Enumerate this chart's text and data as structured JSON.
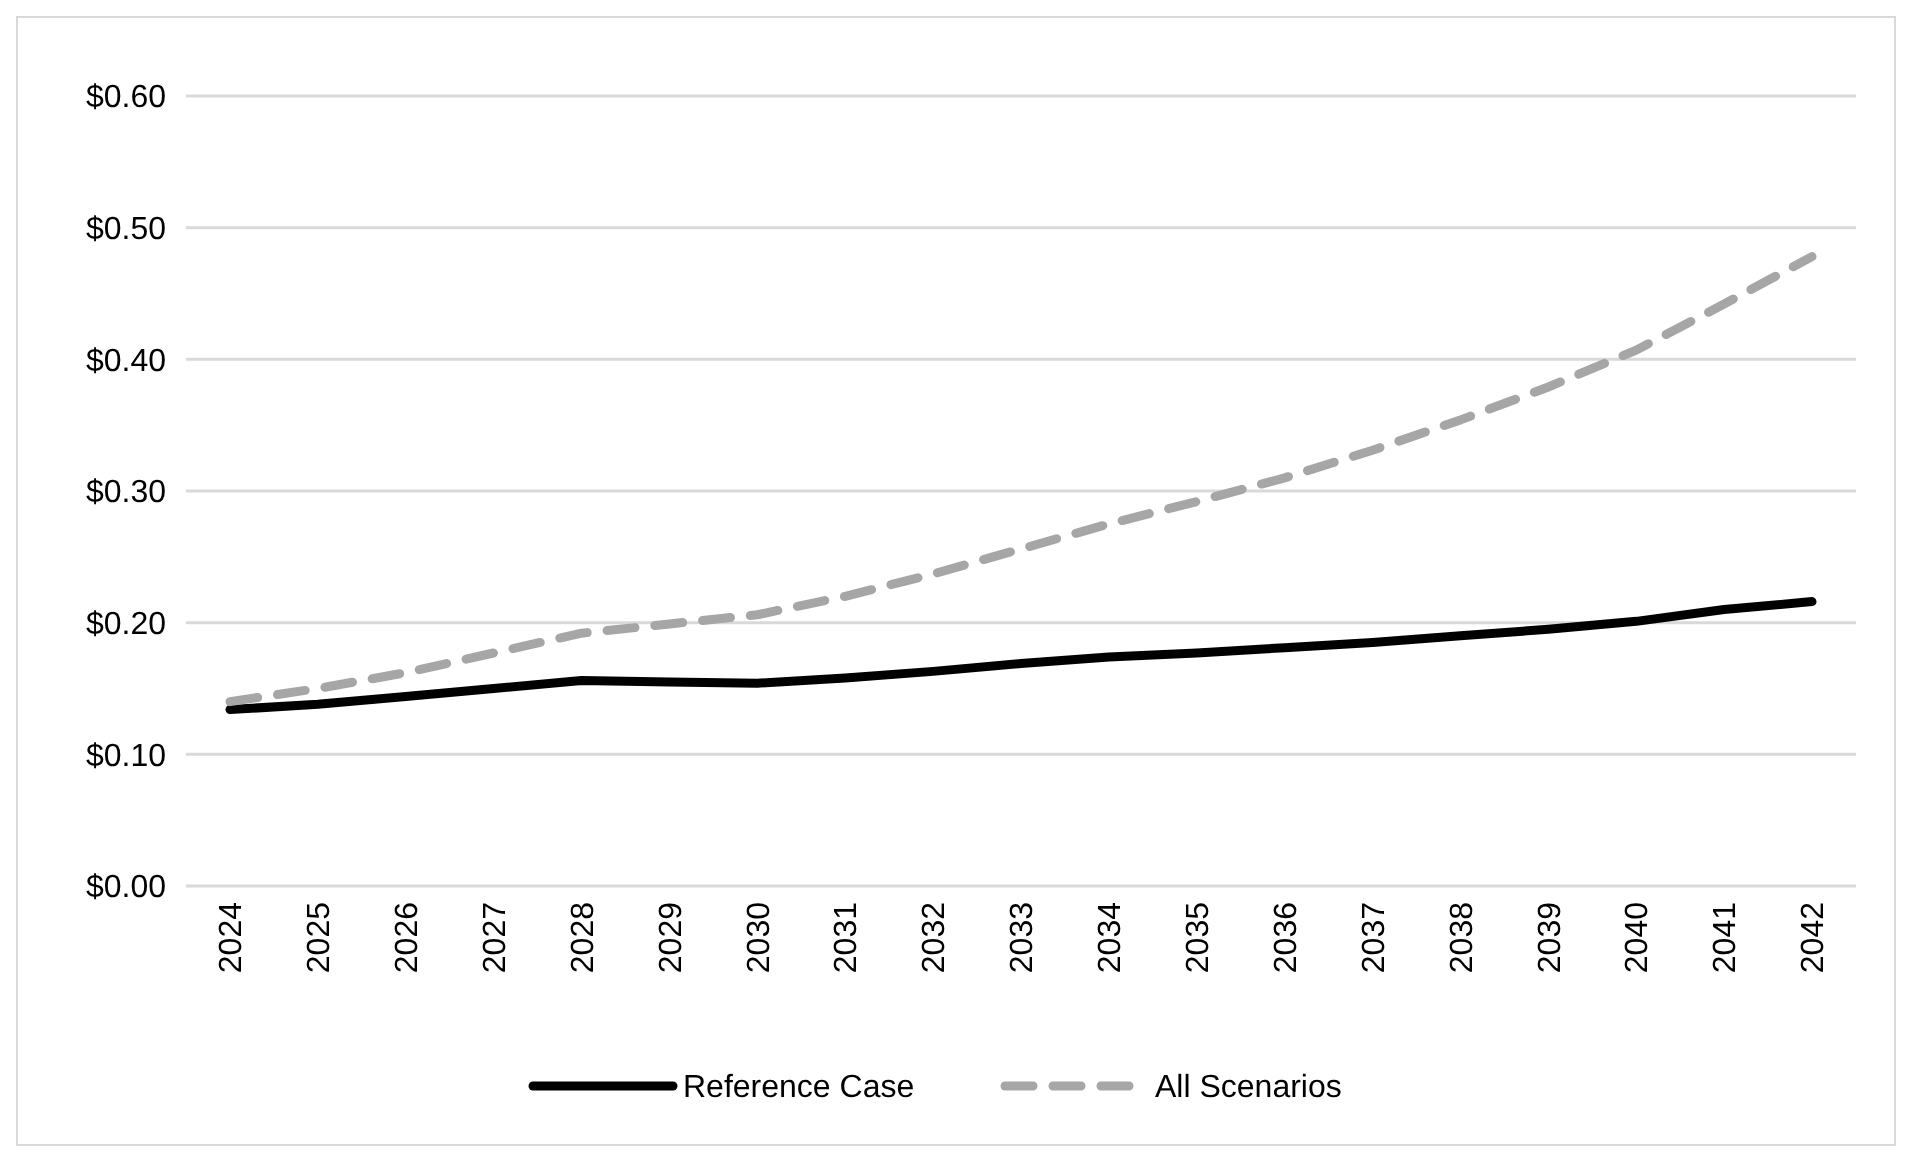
{
  "chart_data": {
    "type": "line",
    "categories": [
      "2024",
      "2025",
      "2026",
      "2027",
      "2028",
      "2029",
      "2030",
      "2031",
      "2032",
      "2033",
      "2034",
      "2035",
      "2036",
      "2037",
      "2038",
      "2039",
      "2040",
      "2041",
      "2042"
    ],
    "series": [
      {
        "name": "Reference Case",
        "color": "#000000",
        "line_style": "solid",
        "values": [
          0.134,
          0.138,
          0.144,
          0.15,
          0.156,
          0.155,
          0.154,
          0.158,
          0.163,
          0.169,
          0.174,
          0.177,
          0.181,
          0.185,
          0.19,
          0.195,
          0.201,
          0.21,
          0.216
        ]
      },
      {
        "name": "All Scenarios",
        "color": "#a6a6a6",
        "line_style": "dashed",
        "values": [
          0.14,
          0.15,
          0.162,
          0.177,
          0.192,
          0.199,
          0.206,
          0.22,
          0.237,
          0.256,
          0.275,
          0.292,
          0.31,
          0.331,
          0.354,
          0.379,
          0.407,
          0.442,
          0.478
        ]
      }
    ],
    "ylim": [
      0,
      0.6
    ],
    "yticks": [
      {
        "value": 0,
        "label": "$0.00"
      },
      {
        "value": 0.1,
        "label": "$0.10"
      },
      {
        "value": 0.2,
        "label": "$0.20"
      },
      {
        "value": 0.3,
        "label": "$0.30"
      },
      {
        "value": 0.4,
        "label": "$0.40"
      },
      {
        "value": 0.5,
        "label": "$0.50"
      },
      {
        "value": 0.6,
        "label": "$0.60"
      }
    ],
    "grid": "y",
    "legend": "bottom"
  }
}
